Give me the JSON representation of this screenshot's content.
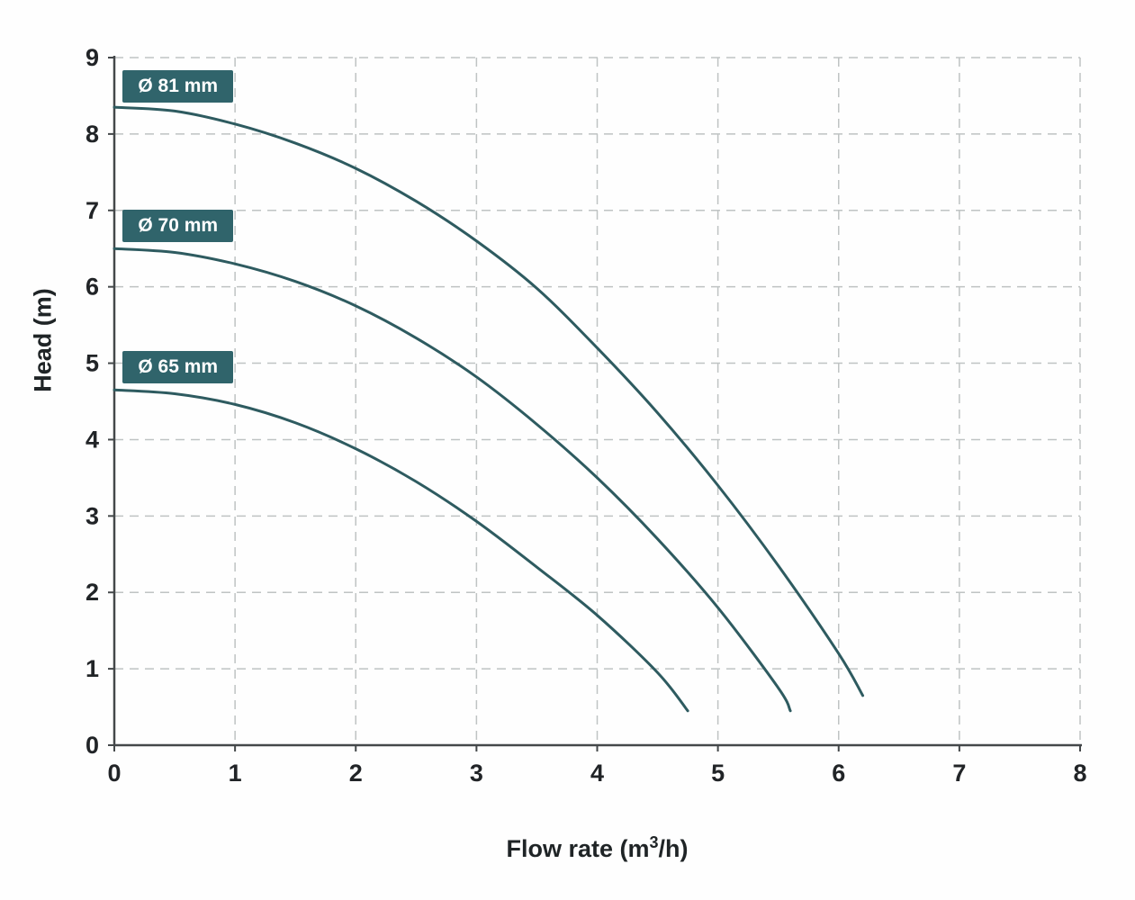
{
  "chart_data": {
    "type": "line",
    "title": "",
    "xlabel": "Flow rate (m³/h)",
    "xlabel_prefix": "Flow rate (m",
    "xlabel_sup": "3",
    "xlabel_suffix": "/h)",
    "ylabel": "Head (m)",
    "xlim": [
      0,
      8
    ],
    "ylim": [
      0,
      9
    ],
    "xticks": [
      0,
      1,
      2,
      3,
      4,
      5,
      6,
      7,
      8
    ],
    "yticks": [
      0,
      1,
      2,
      3,
      4,
      5,
      6,
      7,
      8,
      9
    ],
    "grid": "dashed",
    "legend_position": "on-curve-left",
    "series": [
      {
        "name": "Ø 81 mm",
        "points": [
          [
            0,
            8.35
          ],
          [
            0.5,
            8.3
          ],
          [
            1,
            8.13
          ],
          [
            1.5,
            7.88
          ],
          [
            2,
            7.55
          ],
          [
            2.5,
            7.12
          ],
          [
            3,
            6.6
          ],
          [
            3.5,
            5.98
          ],
          [
            4,
            5.2
          ],
          [
            4.5,
            4.35
          ],
          [
            5,
            3.4
          ],
          [
            5.5,
            2.35
          ],
          [
            6,
            1.2
          ],
          [
            6.2,
            0.65
          ]
        ],
        "label_pos": [
          0.07,
          8.62
        ]
      },
      {
        "name": "Ø 70 mm",
        "points": [
          [
            0,
            6.5
          ],
          [
            0.5,
            6.45
          ],
          [
            1,
            6.3
          ],
          [
            1.5,
            6.07
          ],
          [
            2,
            5.75
          ],
          [
            2.5,
            5.33
          ],
          [
            3,
            4.82
          ],
          [
            3.5,
            4.2
          ],
          [
            4,
            3.5
          ],
          [
            4.5,
            2.7
          ],
          [
            5,
            1.8
          ],
          [
            5.5,
            0.75
          ],
          [
            5.6,
            0.45
          ]
        ],
        "label_pos": [
          0.07,
          6.8
        ]
      },
      {
        "name": "Ø 65 mm",
        "points": [
          [
            0,
            4.65
          ],
          [
            0.5,
            4.6
          ],
          [
            1,
            4.46
          ],
          [
            1.5,
            4.22
          ],
          [
            2,
            3.88
          ],
          [
            2.5,
            3.45
          ],
          [
            3,
            2.93
          ],
          [
            3.5,
            2.33
          ],
          [
            4,
            1.7
          ],
          [
            4.5,
            0.95
          ],
          [
            4.75,
            0.45
          ]
        ],
        "label_pos": [
          0.07,
          4.95
        ]
      }
    ],
    "colors": {
      "curve": "#2e5b60",
      "label_bg": "#30646b",
      "label_text": "#ffffff",
      "grid": "#bfc3c3",
      "axis": "#44484a",
      "text": "#212427"
    }
  }
}
